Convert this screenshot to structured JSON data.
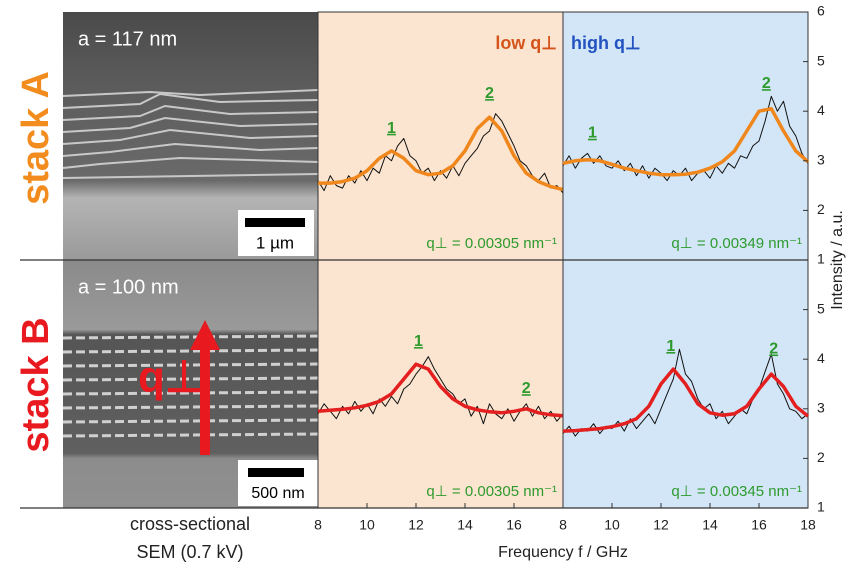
{
  "figure": {
    "xlabel": "Frequency f / GHz",
    "ylabel": "Intensity / a.u."
  },
  "sem": {
    "stack_a": "stack A",
    "stack_b": "stack B",
    "a_a": "a = 117 nm",
    "a_b": "a = 100 nm",
    "scale_a": "1 µm",
    "scale_b": "500 nm",
    "q_label": "q⊥",
    "caption_1": "cross-sectional",
    "caption_2": "SEM (0.7 kV)"
  },
  "chart_data": [
    {
      "type": "line",
      "panel_label": "low q⊥",
      "label_color": "#d4541b",
      "background": "#fbe5d0",
      "q_label": "q⊥ = 0.00305 nm⁻¹",
      "xlim": [
        8,
        18
      ],
      "ylim": [
        1,
        6
      ],
      "series": [
        {
          "color": "#111111",
          "x": [
            8,
            8.25,
            8.5,
            8.75,
            9,
            9.25,
            9.5,
            9.75,
            10,
            10.25,
            10.5,
            10.75,
            11,
            11.25,
            11.5,
            11.75,
            12,
            12.25,
            12.5,
            12.75,
            13,
            13.25,
            13.5,
            13.75,
            14,
            14.25,
            14.5,
            14.75,
            15,
            15.25,
            15.5,
            15.75,
            16,
            16.25,
            16.5,
            16.75,
            17,
            17.25,
            17.5,
            17.75,
            18
          ],
          "values": [
            2.6,
            2.4,
            2.7,
            2.5,
            2.45,
            2.7,
            2.55,
            2.8,
            2.6,
            2.85,
            2.75,
            3.1,
            3.0,
            3.3,
            3.45,
            3.1,
            3.0,
            2.75,
            2.85,
            2.6,
            2.8,
            2.65,
            2.9,
            2.7,
            2.95,
            3.1,
            3.25,
            3.5,
            3.6,
            3.95,
            3.8,
            3.55,
            3.3,
            3.0,
            2.9,
            2.7,
            2.6,
            2.75,
            2.45,
            2.5,
            2.35
          ]
        },
        {
          "color": "#f0871c",
          "x": [
            8,
            8.5,
            9,
            9.5,
            10,
            10.5,
            11,
            11.5,
            12,
            12.5,
            13,
            13.5,
            14,
            14.5,
            15,
            15.5,
            16,
            16.5,
            17,
            17.5,
            18
          ],
          "values": [
            2.55,
            2.55,
            2.58,
            2.65,
            2.8,
            3.05,
            3.2,
            3.05,
            2.8,
            2.72,
            2.75,
            2.9,
            3.2,
            3.65,
            3.88,
            3.6,
            3.1,
            2.75,
            2.58,
            2.48,
            2.42
          ]
        }
      ],
      "annotations": [
        {
          "text": "1",
          "x": 11,
          "y": 3.65
        },
        {
          "text": "2",
          "x": 15,
          "y": 4.35
        }
      ]
    },
    {
      "type": "line",
      "panel_label": "high q⊥",
      "label_color": "#2353c0",
      "background": "#d3e6f7",
      "q_label": "q⊥ = 0.00349 nm⁻¹",
      "xlim": [
        8,
        18
      ],
      "ylim": [
        1,
        6
      ],
      "yticks": [
        1,
        2,
        3,
        4,
        5,
        6
      ],
      "series": [
        {
          "color": "#111111",
          "x": [
            8,
            8.25,
            8.5,
            8.75,
            9,
            9.25,
            9.5,
            9.75,
            10,
            10.25,
            10.5,
            10.75,
            11,
            11.25,
            11.5,
            11.75,
            12,
            12.25,
            12.5,
            12.75,
            13,
            13.25,
            13.5,
            13.75,
            14,
            14.25,
            14.5,
            14.75,
            15,
            15.25,
            15.5,
            15.75,
            16,
            16.25,
            16.5,
            16.75,
            17,
            17.25,
            17.5,
            17.75,
            18
          ],
          "values": [
            2.9,
            3.1,
            2.85,
            3.05,
            3.15,
            2.95,
            3.1,
            2.9,
            2.85,
            3.0,
            2.8,
            2.95,
            2.7,
            2.9,
            2.65,
            2.85,
            2.75,
            2.6,
            2.8,
            2.7,
            2.85,
            2.6,
            2.75,
            2.8,
            2.65,
            2.9,
            2.75,
            2.95,
            2.85,
            3.1,
            3.05,
            3.3,
            3.4,
            3.8,
            4.3,
            4.0,
            4.2,
            3.7,
            3.5,
            3.15,
            2.95
          ]
        },
        {
          "color": "#f0871c",
          "x": [
            8,
            8.5,
            9,
            9.5,
            10,
            10.5,
            11,
            11.5,
            12,
            12.5,
            13,
            13.5,
            14,
            14.5,
            15,
            15.5,
            16,
            16.5,
            17,
            17.5,
            18
          ],
          "values": [
            2.95,
            3.0,
            3.02,
            3.0,
            2.93,
            2.85,
            2.8,
            2.75,
            2.72,
            2.72,
            2.73,
            2.77,
            2.85,
            2.98,
            3.2,
            3.6,
            4.0,
            4.05,
            3.6,
            3.2,
            2.98
          ]
        }
      ],
      "annotations": [
        {
          "text": "1",
          "x": 9.2,
          "y": 3.55
        },
        {
          "text": "2",
          "x": 16.3,
          "y": 4.55
        }
      ]
    },
    {
      "type": "line",
      "background": "#fbe5d0",
      "q_label": "q⊥ = 0.00305 nm⁻¹",
      "xlim": [
        8,
        18
      ],
      "ylim": [
        1,
        6
      ],
      "xticks": [
        8,
        10,
        12,
        14,
        16
      ],
      "series": [
        {
          "color": "#111111",
          "x": [
            8,
            8.25,
            8.5,
            8.75,
            9,
            9.25,
            9.5,
            9.75,
            10,
            10.25,
            10.5,
            10.75,
            11,
            11.25,
            11.5,
            11.75,
            12,
            12.25,
            12.5,
            12.75,
            13,
            13.25,
            13.5,
            13.75,
            14,
            14.25,
            14.5,
            14.75,
            15,
            15.25,
            15.5,
            15.75,
            16,
            16.25,
            16.5,
            16.75,
            17,
            17.25,
            17.5,
            17.75,
            18
          ],
          "values": [
            2.9,
            3.1,
            2.95,
            2.8,
            3.05,
            2.9,
            3.15,
            2.95,
            3.1,
            2.9,
            3.2,
            3.05,
            3.25,
            3.1,
            3.4,
            3.5,
            3.7,
            3.85,
            4.05,
            3.8,
            3.6,
            3.4,
            3.3,
            3.1,
            3.2,
            2.85,
            3.05,
            2.7,
            3.1,
            2.9,
            2.8,
            3.0,
            2.75,
            2.95,
            3.1,
            2.85,
            3.05,
            2.8,
            2.95,
            2.75,
            2.9
          ]
        },
        {
          "color": "#e41f1f",
          "x": [
            8,
            8.5,
            9,
            9.5,
            10,
            10.5,
            11,
            11.5,
            12,
            12.5,
            13,
            13.5,
            14,
            14.5,
            15,
            15.5,
            16,
            16.5,
            17,
            17.5,
            18
          ],
          "values": [
            2.95,
            2.97,
            2.99,
            3.02,
            3.07,
            3.15,
            3.3,
            3.6,
            3.9,
            3.8,
            3.45,
            3.2,
            3.05,
            2.98,
            2.94,
            2.92,
            2.95,
            3.0,
            2.92,
            2.88,
            2.86
          ]
        }
      ],
      "annotations": [
        {
          "text": "1",
          "x": 12.1,
          "y": 4.35
        },
        {
          "text": "2",
          "x": 16.5,
          "y": 3.4
        }
      ]
    },
    {
      "type": "line",
      "background": "#d3e6f7",
      "q_label": "q⊥ = 0.00345 nm⁻¹",
      "xlim": [
        8,
        18
      ],
      "ylim": [
        1,
        6
      ],
      "xticks": [
        8,
        10,
        12,
        14,
        16,
        18
      ],
      "yticks": [
        1,
        2,
        3,
        4,
        5
      ],
      "series": [
        {
          "color": "#111111",
          "x": [
            8,
            8.25,
            8.5,
            8.75,
            9,
            9.25,
            9.5,
            9.75,
            10,
            10.25,
            10.5,
            10.75,
            11,
            11.25,
            11.5,
            11.75,
            12,
            12.25,
            12.5,
            12.75,
            13,
            13.25,
            13.5,
            13.75,
            14,
            14.25,
            14.5,
            14.75,
            15,
            15.25,
            15.5,
            15.75,
            16,
            16.25,
            16.5,
            16.75,
            17,
            17.25,
            17.5,
            17.75,
            18
          ],
          "values": [
            2.5,
            2.65,
            2.45,
            2.6,
            2.55,
            2.7,
            2.5,
            2.65,
            2.6,
            2.75,
            2.55,
            2.8,
            2.6,
            2.75,
            2.9,
            2.7,
            3.0,
            3.3,
            3.6,
            4.2,
            3.7,
            3.55,
            3.2,
            3.0,
            3.1,
            2.8,
            2.95,
            2.7,
            2.85,
            3.0,
            2.9,
            3.2,
            3.4,
            3.75,
            4.1,
            3.5,
            3.3,
            3.0,
            2.95,
            2.8,
            2.9
          ]
        },
        {
          "color": "#e41f1f",
          "x": [
            8,
            8.5,
            9,
            9.5,
            10,
            10.5,
            11,
            11.5,
            12,
            12.5,
            13,
            13.5,
            14,
            14.5,
            15,
            15.5,
            16,
            16.5,
            17,
            17.5,
            18
          ],
          "values": [
            2.55,
            2.56,
            2.58,
            2.6,
            2.64,
            2.7,
            2.8,
            3.05,
            3.5,
            3.8,
            3.5,
            3.1,
            2.92,
            2.87,
            2.9,
            3.05,
            3.4,
            3.7,
            3.45,
            3.05,
            2.85
          ]
        }
      ],
      "annotations": [
        {
          "text": "1",
          "x": 12.4,
          "y": 4.25
        },
        {
          "text": "2",
          "x": 16.6,
          "y": 4.2
        }
      ]
    }
  ]
}
